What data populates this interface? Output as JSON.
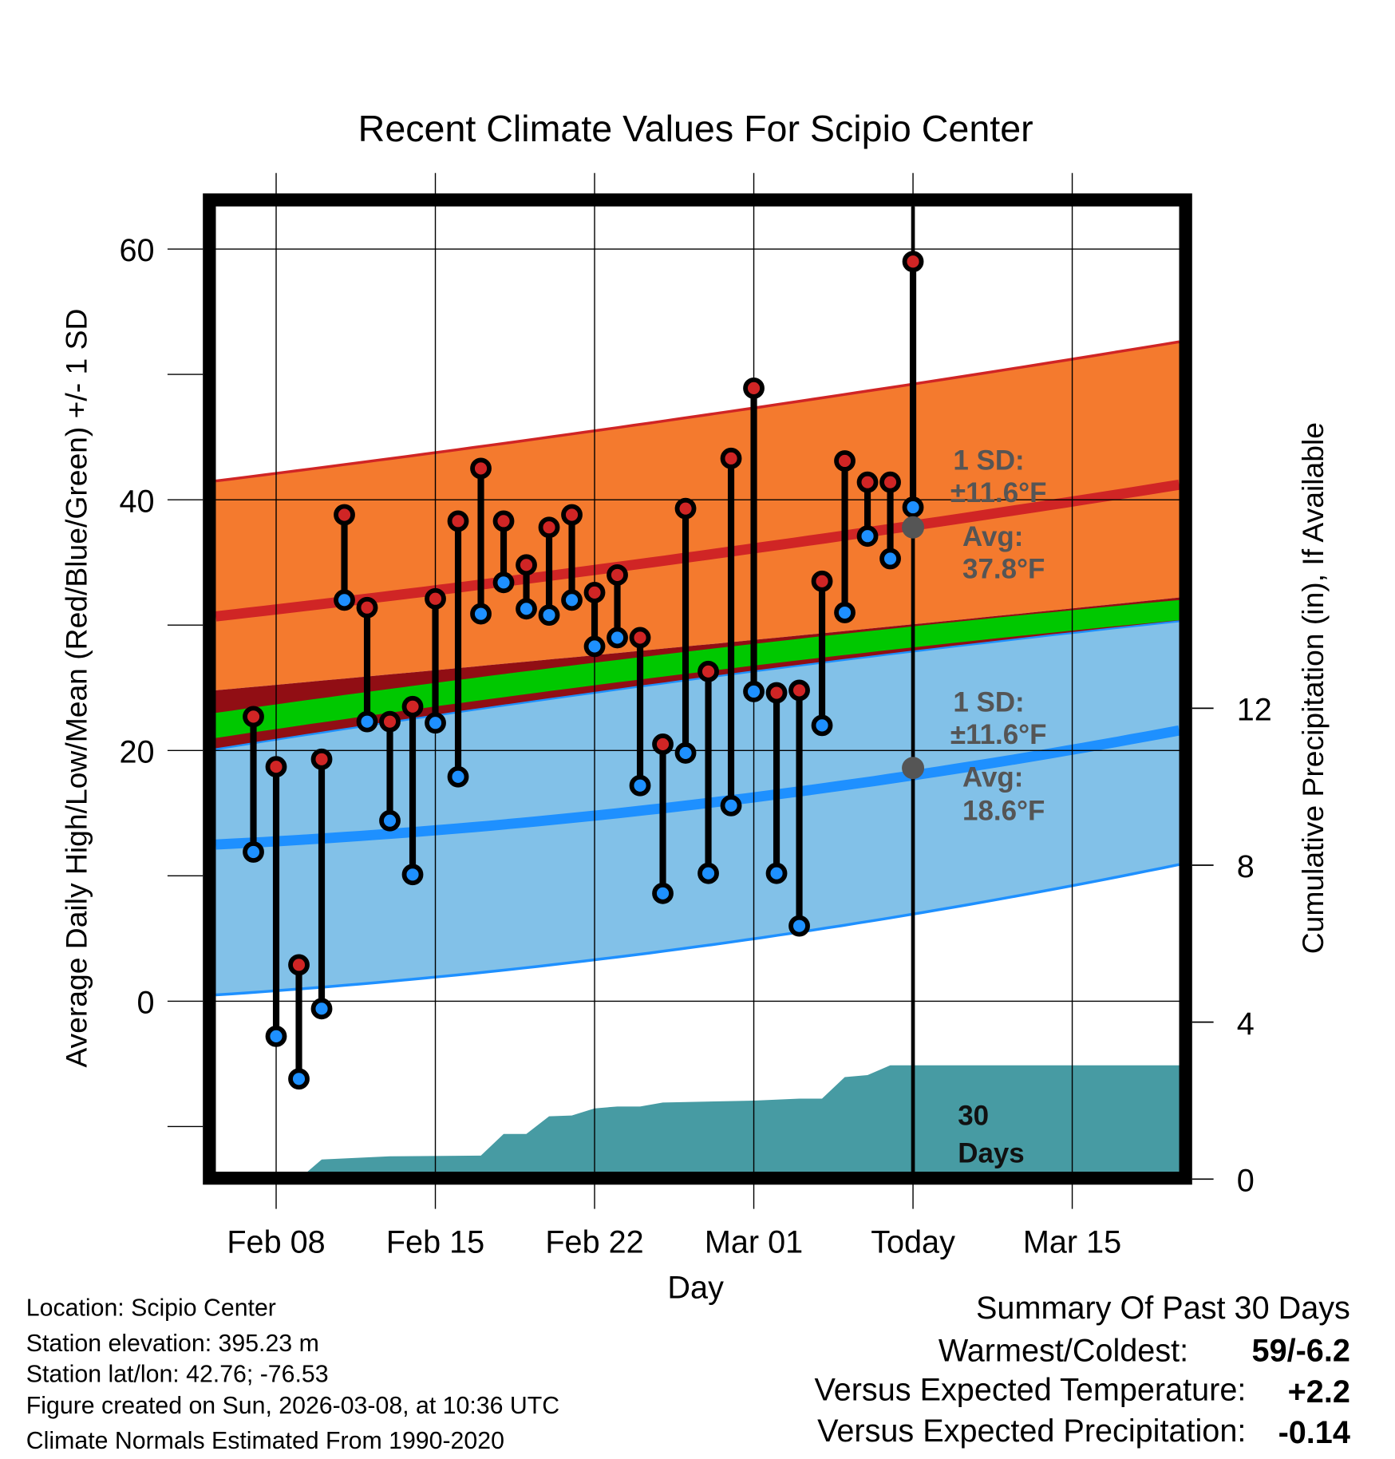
{
  "chart_data": {
    "type": "line",
    "title": "Recent Climate Values For Scipio Center",
    "xlabel": "Day",
    "ylabel": "Average Daily High/Low/Mean (Red/Blue/Green) +/- 1 SD",
    "y2label": "Cumulative Precipitation (in), If Available",
    "ylim": [
      -13.6,
      63.4
    ],
    "y2lim": [
      0,
      22.5
    ],
    "yticks": [
      "60",
      "40",
      "20",
      "0"
    ],
    "yticks_values": [
      60,
      40,
      20,
      0
    ],
    "y2ticks": [
      "12",
      "8",
      "4",
      "0"
    ],
    "y2ticks_values": [
      12,
      8,
      4,
      0
    ],
    "xlim_days_from_feb01": [
      4.35,
      46.7
    ],
    "xticks": [
      "Feb 08",
      "Feb 15",
      "Feb 22",
      "Mar 01",
      "Today",
      "Mar 15"
    ],
    "xticks_days_from_feb01": [
      7,
      14,
      21,
      28,
      35,
      42
    ],
    "grid": true,
    "today_day": 35,
    "days": [
      "Feb 06",
      "Feb 07",
      "Feb 08",
      "Feb 09",
      "Feb 10",
      "Feb 11",
      "Feb 12",
      "Feb 13",
      "Feb 14",
      "Feb 15",
      "Feb 16",
      "Feb 17",
      "Feb 18",
      "Feb 19",
      "Feb 20",
      "Feb 21",
      "Feb 22",
      "Feb 23",
      "Feb 24",
      "Feb 25",
      "Feb 26",
      "Feb 27",
      "Feb 28",
      "Mar 01",
      "Mar 02",
      "Mar 03",
      "Mar 04",
      "Mar 05",
      "Mar 06",
      "Mar 07"
    ],
    "series": [
      {
        "name": "Daily High",
        "color": "#d02525",
        "values": [
          22.7,
          18.7,
          2.9,
          19.3,
          38.8,
          31.4,
          22.3,
          23.5,
          32.1,
          38.3,
          42.5,
          38.3,
          34.8,
          37.8,
          38.8,
          32.6,
          34.0,
          29.0,
          20.5,
          39.3,
          26.3,
          43.3,
          48.9,
          24.6,
          24.8,
          33.5,
          43.1,
          41.4,
          41.4,
          59.0
        ]
      },
      {
        "name": "Daily Low",
        "color": "#1e90ff",
        "values": [
          11.9,
          -2.8,
          -6.2,
          -0.6,
          32.0,
          22.3,
          14.4,
          10.1,
          22.2,
          17.9,
          30.9,
          33.4,
          31.3,
          30.8,
          32.0,
          28.3,
          29.0,
          17.2,
          8.6,
          19.8,
          10.2,
          15.6,
          24.7,
          10.2,
          6.0,
          22.0,
          31.0,
          37.1,
          35.3,
          39.4
        ]
      }
    ],
    "normals": {
      "sample_days_from_feb01": [
        4.35,
        21,
        46.7
      ],
      "high_upper": [
        41.5,
        45.5,
        52.6
      ],
      "high_mean": [
        30.7,
        34.4,
        41.2
      ],
      "high_lower": [
        24.8,
        27.6,
        32.2
      ],
      "mean_upper": [
        23.0,
        27.0,
        32.0
      ],
      "mean_lower": [
        21.0,
        25.2,
        30.4
      ],
      "low_upper": [
        20.1,
        24.6,
        30.3
      ],
      "low_mean": [
        12.5,
        14.8,
        21.6
      ],
      "low_lower": [
        0.5,
        3.3,
        10.9
      ]
    },
    "precip_cumulative": {
      "days_from_feb01": [
        8,
        9,
        12,
        16,
        17,
        18,
        19,
        20,
        21,
        22,
        23,
        24,
        28,
        30,
        31,
        32,
        33,
        34,
        46.7
      ],
      "values": [
        0,
        0.5,
        0.58,
        0.6,
        1.15,
        1.15,
        1.6,
        1.62,
        1.8,
        1.85,
        1.85,
        1.95,
        2.0,
        2.05,
        2.05,
        2.6,
        2.65,
        2.9,
        2.9
      ]
    },
    "annotations": {
      "high_sd": "1 SD:",
      "high_sd_value": "±11.6°F",
      "high_avg": "Avg:",
      "high_avg_value": "37.8°F",
      "low_sd": "1 SD:",
      "low_sd_value": "±11.6°F",
      "low_avg": "Avg:",
      "low_avg_value": "18.6°F",
      "period_1": "30",
      "period_2": "Days"
    },
    "expected_today": {
      "high": 37.8,
      "low": 18.6
    }
  },
  "footer": {
    "location": "Location: Scipio Center",
    "elevation": "Station elevation: 395.23 m",
    "latlon": "Station lat/lon: 42.76; -76.53",
    "created": "Figure created on Sun, 2026-03-08, at 10:36 UTC",
    "normals": "Climate Normals Estimated From 1990-2020"
  },
  "summary": {
    "title": "Summary Of Past 30 Days",
    "warm_cold_label": "Warmest/Coldest:",
    "warm_cold_value": "59/-6.2",
    "temp_label": "Versus Expected Temperature:",
    "temp_value": "+2.2",
    "temp_color": "#d02525",
    "precip_label": "Versus Expected Precipitation:",
    "precip_value": "-0.14",
    "precip_color": "#a0522d"
  },
  "colors": {
    "high_band": "#f47a2e",
    "low_band": "#82c1e8",
    "gap_band": "#910e14",
    "mean_band": "#00c800",
    "precip": "#479ba3"
  }
}
